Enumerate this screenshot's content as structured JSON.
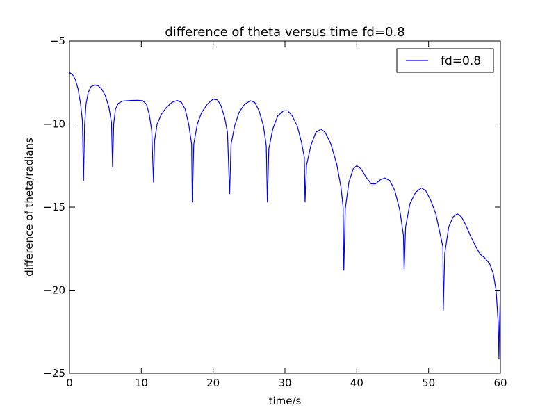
{
  "chart_data": {
    "type": "line",
    "title": "difference of theta versus time  fd=0.8",
    "xlabel": "time/s",
    "ylabel": "difference of theta/radians",
    "xlim": [
      0,
      60
    ],
    "ylim": [
      -25,
      -5
    ],
    "xticks": [
      0,
      10,
      20,
      30,
      40,
      50,
      60
    ],
    "yticks": [
      -25,
      -20,
      -15,
      -10,
      -5
    ],
    "xtick_labels": [
      "0",
      "10",
      "20",
      "30",
      "40",
      "50",
      "60"
    ],
    "ytick_labels": [
      "−25",
      "−20",
      "−15",
      "−10",
      "−5"
    ],
    "grid": false,
    "legend_position": "top-right",
    "colors": {
      "series": "#0000ff",
      "axes": "#000000",
      "background": "#ffffff"
    },
    "series": [
      {
        "name": "fd=0.8",
        "legend_label": "fd=0.8",
        "points": [
          [
            0.0,
            -6.9
          ],
          [
            0.4,
            -7.0
          ],
          [
            0.8,
            -7.3
          ],
          [
            1.2,
            -7.9
          ],
          [
            1.55,
            -8.8
          ],
          [
            1.8,
            -9.8
          ],
          [
            1.95,
            -13.4
          ],
          [
            2.1,
            -10.1
          ],
          [
            2.3,
            -8.8
          ],
          [
            2.6,
            -8.1
          ],
          [
            3.0,
            -7.75
          ],
          [
            3.5,
            -7.65
          ],
          [
            4.0,
            -7.7
          ],
          [
            4.5,
            -7.9
          ],
          [
            5.0,
            -8.3
          ],
          [
            5.5,
            -9.0
          ],
          [
            5.85,
            -9.9
          ],
          [
            6.0,
            -12.6
          ],
          [
            6.15,
            -10.0
          ],
          [
            6.4,
            -9.1
          ],
          [
            6.8,
            -8.75
          ],
          [
            7.4,
            -8.62
          ],
          [
            8.5,
            -8.58
          ],
          [
            9.5,
            -8.57
          ],
          [
            10.2,
            -8.6
          ],
          [
            10.7,
            -8.8
          ],
          [
            11.1,
            -9.4
          ],
          [
            11.45,
            -10.4
          ],
          [
            11.7,
            -13.5
          ],
          [
            11.85,
            -11.0
          ],
          [
            12.2,
            -10.0
          ],
          [
            12.8,
            -9.4
          ],
          [
            13.5,
            -9.0
          ],
          [
            14.3,
            -8.68
          ],
          [
            15.0,
            -8.58
          ],
          [
            15.6,
            -8.7
          ],
          [
            16.1,
            -9.1
          ],
          [
            16.6,
            -10.0
          ],
          [
            17.0,
            -11.2
          ],
          [
            17.1,
            -14.7
          ],
          [
            17.3,
            -11.2
          ],
          [
            17.8,
            -10.0
          ],
          [
            18.4,
            -9.3
          ],
          [
            19.2,
            -8.8
          ],
          [
            20.0,
            -8.5
          ],
          [
            20.6,
            -8.55
          ],
          [
            21.1,
            -8.9
          ],
          [
            21.6,
            -9.6
          ],
          [
            22.0,
            -10.5
          ],
          [
            22.3,
            -14.2
          ],
          [
            22.5,
            -11.2
          ],
          [
            23.0,
            -10.1
          ],
          [
            23.6,
            -9.3
          ],
          [
            24.4,
            -8.8
          ],
          [
            25.2,
            -8.6
          ],
          [
            25.8,
            -8.7
          ],
          [
            26.4,
            -9.2
          ],
          [
            27.0,
            -10.1
          ],
          [
            27.4,
            -11.3
          ],
          [
            27.55,
            -14.7
          ],
          [
            27.75,
            -11.5
          ],
          [
            28.3,
            -10.3
          ],
          [
            29.0,
            -9.5
          ],
          [
            29.8,
            -9.2
          ],
          [
            30.4,
            -9.2
          ],
          [
            31.0,
            -9.5
          ],
          [
            31.7,
            -10.1
          ],
          [
            32.3,
            -11.1
          ],
          [
            32.7,
            -12.0
          ],
          [
            32.8,
            -14.7
          ],
          [
            33.0,
            -12.5
          ],
          [
            33.6,
            -11.3
          ],
          [
            34.3,
            -10.5
          ],
          [
            35.0,
            -10.3
          ],
          [
            35.6,
            -10.5
          ],
          [
            36.4,
            -11.2
          ],
          [
            37.2,
            -12.4
          ],
          [
            37.8,
            -13.8
          ],
          [
            38.1,
            -15.0
          ],
          [
            38.2,
            -18.8
          ],
          [
            38.4,
            -15.1
          ],
          [
            38.9,
            -13.5
          ],
          [
            39.5,
            -12.7
          ],
          [
            40.0,
            -12.5
          ],
          [
            40.6,
            -12.7
          ],
          [
            41.3,
            -13.2
          ],
          [
            42.0,
            -13.6
          ],
          [
            42.6,
            -13.6
          ],
          [
            43.3,
            -13.35
          ],
          [
            43.9,
            -13.25
          ],
          [
            44.6,
            -13.4
          ],
          [
            45.3,
            -14.0
          ],
          [
            46.0,
            -15.2
          ],
          [
            46.5,
            -16.7
          ],
          [
            46.6,
            -18.8
          ],
          [
            46.8,
            -16.2
          ],
          [
            47.4,
            -14.8
          ],
          [
            48.2,
            -14.1
          ],
          [
            49.0,
            -13.85
          ],
          [
            49.6,
            -14.0
          ],
          [
            50.3,
            -14.6
          ],
          [
            51.0,
            -15.4
          ],
          [
            51.6,
            -16.6
          ],
          [
            52.0,
            -17.4
          ],
          [
            52.05,
            -21.2
          ],
          [
            52.25,
            -17.8
          ],
          [
            52.8,
            -16.2
          ],
          [
            53.4,
            -15.6
          ],
          [
            54.0,
            -15.4
          ],
          [
            54.6,
            -15.6
          ],
          [
            55.2,
            -16.1
          ],
          [
            55.9,
            -16.8
          ],
          [
            56.6,
            -17.4
          ],
          [
            57.2,
            -17.85
          ],
          [
            57.8,
            -18.05
          ],
          [
            58.5,
            -18.4
          ],
          [
            59.0,
            -19.0
          ],
          [
            59.4,
            -20.0
          ],
          [
            59.7,
            -22.0
          ],
          [
            59.8,
            -24.1
          ],
          [
            59.85,
            -22.5
          ],
          [
            60.0,
            -20.1
          ]
        ]
      }
    ]
  }
}
